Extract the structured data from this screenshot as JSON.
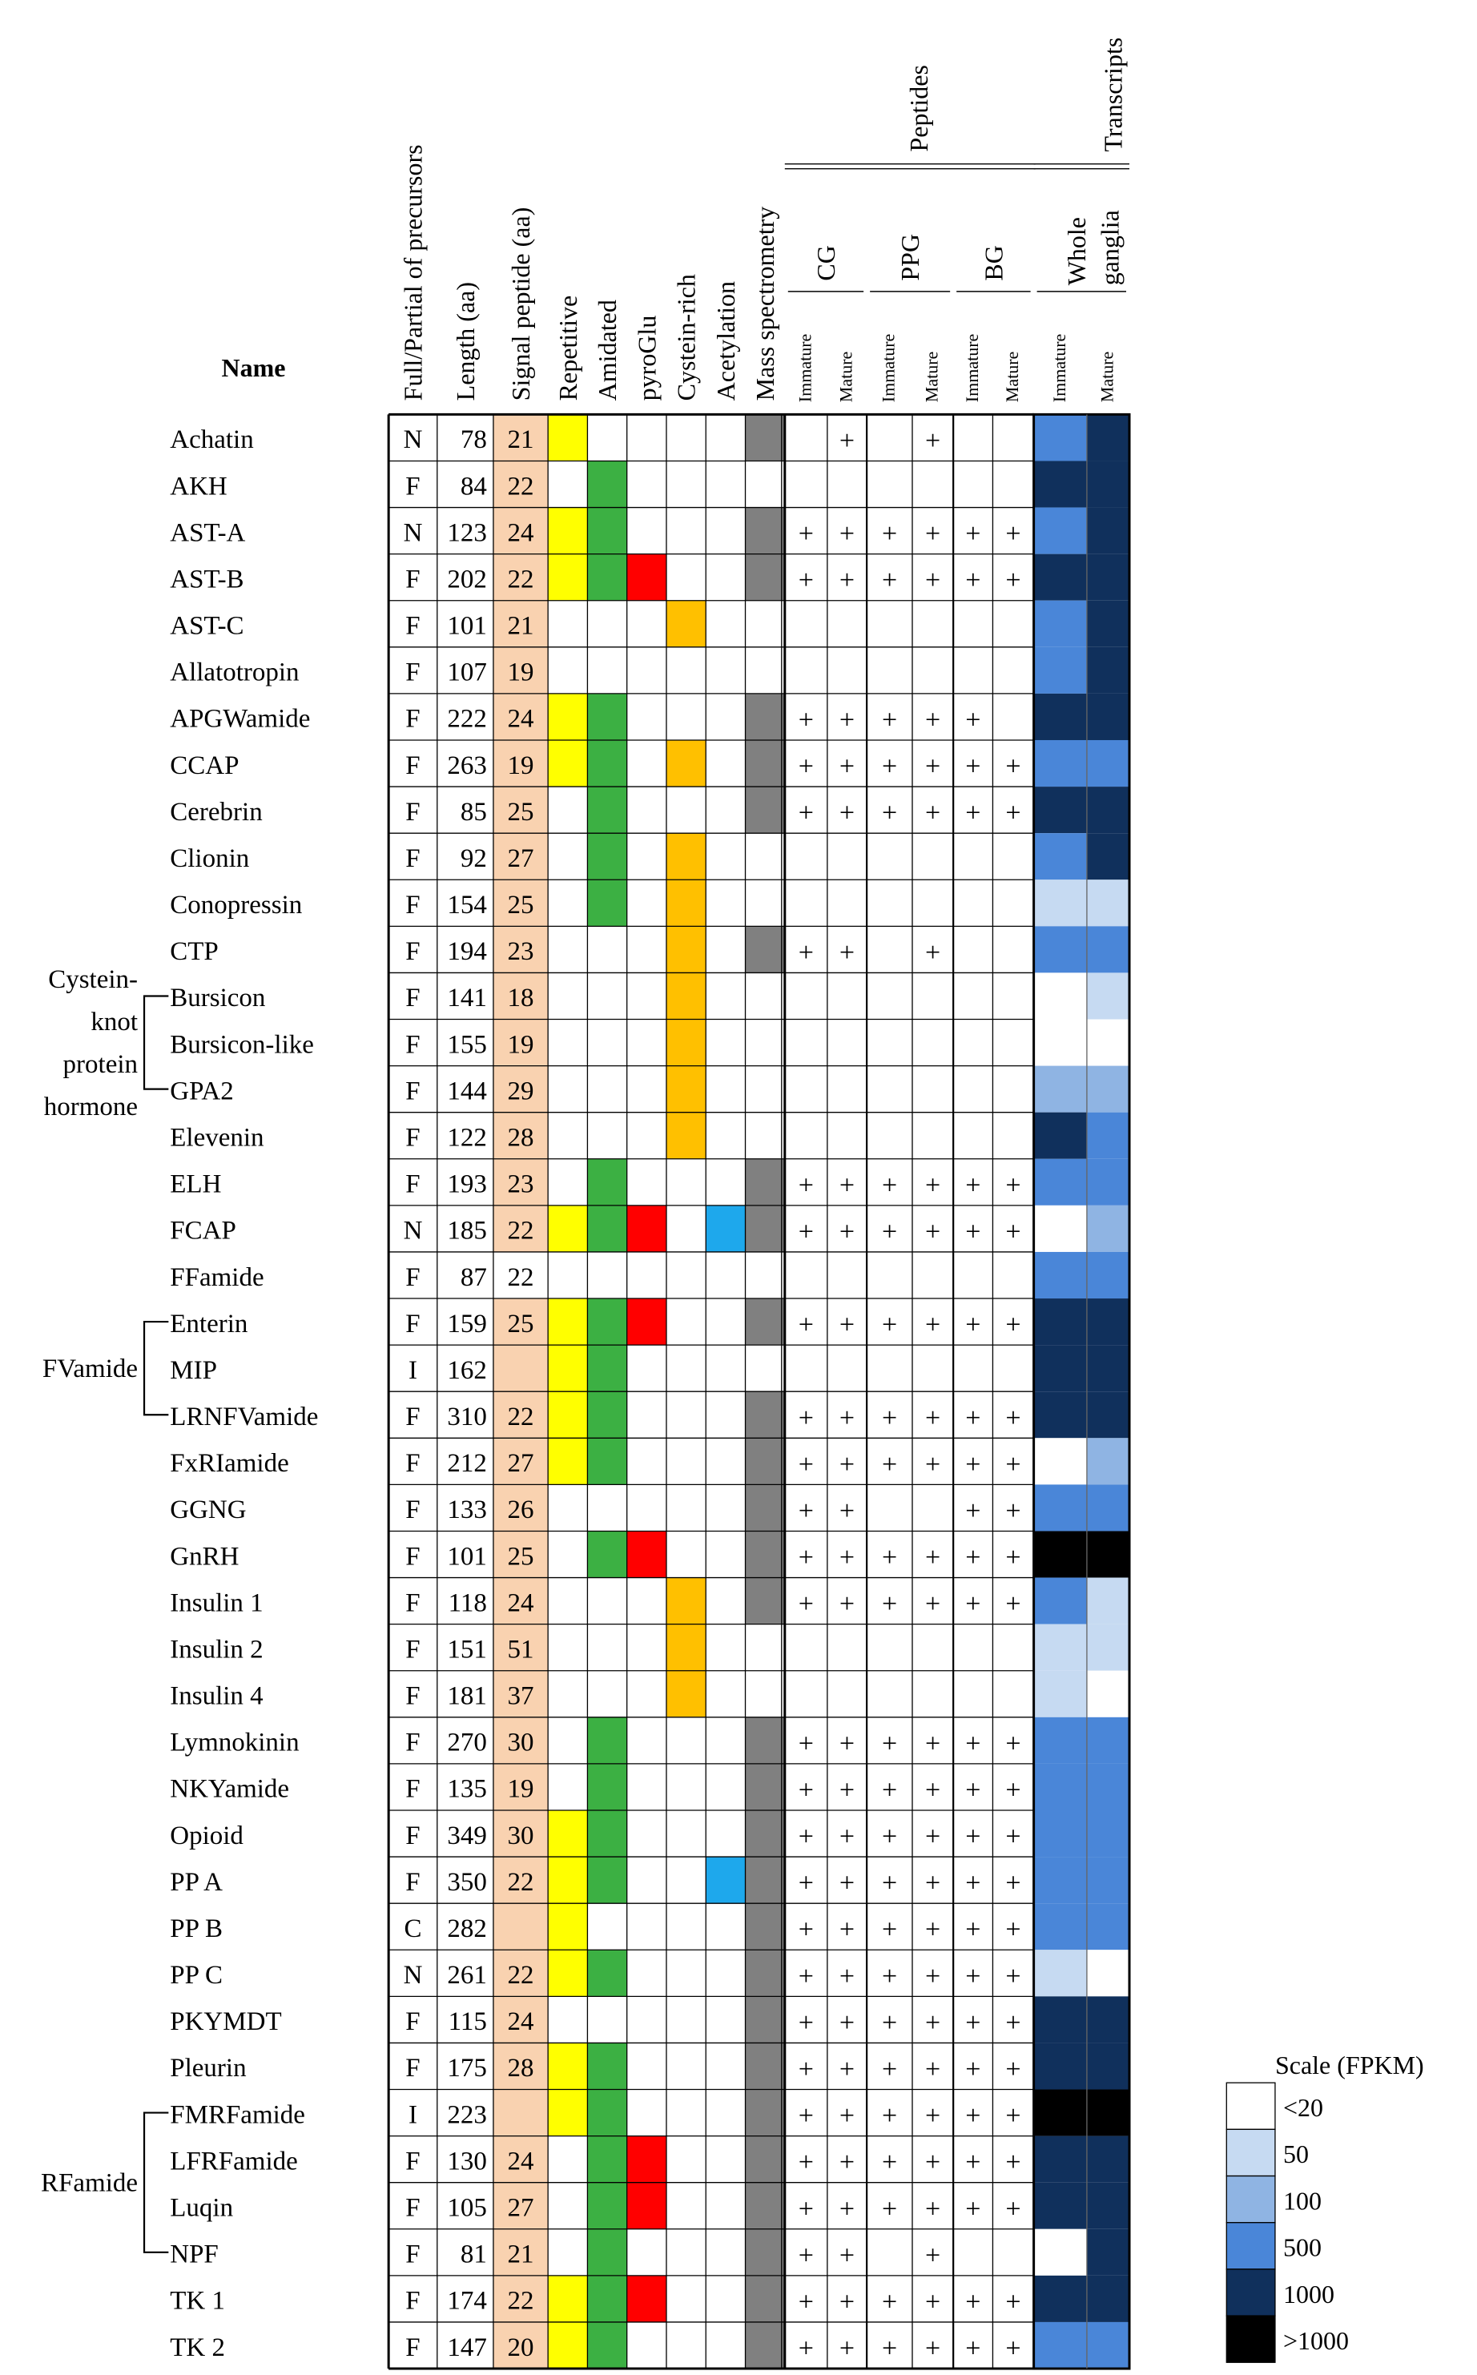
{
  "chart_data": {
    "type": "table",
    "headers": {
      "name": "Name",
      "full_partial": "Full/Partial of precursors",
      "length": "Length (aa)",
      "signal": "Signal peptide (aa)",
      "repetitive": "Repetitive",
      "amidated": "Amidated",
      "pyroglu": "pyroGlu",
      "cysteine": "Cystein-rich",
      "acetylation": "Acetylation",
      "mass_spec": "Mass spectrometry",
      "peptides": "Peptides",
      "transcripts": "Transcripts",
      "cg": "CG",
      "ppg": "PPG",
      "bg": "BG",
      "whole_line1": "Whole",
      "whole_line2": "ganglia",
      "immature": "Immature",
      "mature": "Mature"
    },
    "groups": [
      {
        "label_lines": [
          "Cystein-",
          "knot",
          "protein",
          "hormone"
        ],
        "members": [
          "Bursicon",
          "Bursicon-like",
          "GPA2"
        ]
      },
      {
        "label_lines": [
          "FVamide"
        ],
        "members": [
          "Enterin",
          "MIP",
          "LRNFVamide"
        ]
      },
      {
        "label_lines": [
          "RFamide"
        ],
        "members": [
          "FMRFamide",
          "LFRFamide",
          "Luqin",
          "NPF"
        ]
      }
    ],
    "colors": {
      "signal": "#f9d2b0",
      "repetitive": "#ffff00",
      "amidated": "#3cb043",
      "pyroglu": "#ff0000",
      "cysteine": "#ffc000",
      "acetylation": "#1ea8ec",
      "mass_spec": "#808080"
    },
    "scale": {
      "title": "Scale (FPKM)",
      "levels": [
        {
          "label": "<20",
          "color": "#ffffff"
        },
        {
          "label": "50",
          "color": "#c6daf2"
        },
        {
          "label": "100",
          "color": "#8fb4e3"
        },
        {
          "label": "500",
          "color": "#4a86d8"
        },
        {
          "label": "1000",
          "color": "#10305c"
        },
        {
          "label": ">1000",
          "color": "#000000"
        }
      ]
    },
    "rows": [
      {
        "name": "Achatin",
        "fp": "N",
        "len": 78,
        "sig": 21,
        "rep": 1,
        "ami": 0,
        "pyro": 0,
        "cys": 0,
        "ace": 0,
        "ms": 1,
        "cg": [
          0,
          1
        ],
        "ppg": [
          0,
          1
        ],
        "bg": [
          0,
          0
        ],
        "tr": [
          3,
          4
        ]
      },
      {
        "name": "AKH",
        "fp": "F",
        "len": 84,
        "sig": 22,
        "rep": 0,
        "ami": 1,
        "pyro": 0,
        "cys": 0,
        "ace": 0,
        "ms": 0,
        "cg": [
          0,
          0
        ],
        "ppg": [
          0,
          0
        ],
        "bg": [
          0,
          0
        ],
        "tr": [
          4,
          4
        ]
      },
      {
        "name": "AST-A",
        "fp": "N",
        "len": 123,
        "sig": 24,
        "rep": 1,
        "ami": 1,
        "pyro": 0,
        "cys": 0,
        "ace": 0,
        "ms": 1,
        "cg": [
          1,
          1
        ],
        "ppg": [
          1,
          1
        ],
        "bg": [
          1,
          1
        ],
        "tr": [
          3,
          4
        ]
      },
      {
        "name": "AST-B",
        "fp": "F",
        "len": 202,
        "sig": 22,
        "rep": 1,
        "ami": 1,
        "pyro": 1,
        "cys": 0,
        "ace": 0,
        "ms": 1,
        "cg": [
          1,
          1
        ],
        "ppg": [
          1,
          1
        ],
        "bg": [
          1,
          1
        ],
        "tr": [
          4,
          4
        ]
      },
      {
        "name": "AST-C",
        "fp": "F",
        "len": 101,
        "sig": 21,
        "rep": 0,
        "ami": 0,
        "pyro": 0,
        "cys": 1,
        "ace": 0,
        "ms": 0,
        "cg": [
          0,
          0
        ],
        "ppg": [
          0,
          0
        ],
        "bg": [
          0,
          0
        ],
        "tr": [
          3,
          4
        ]
      },
      {
        "name": "Allatotropin",
        "fp": "F",
        "len": 107,
        "sig": 19,
        "rep": 0,
        "ami": 0,
        "pyro": 0,
        "cys": 0,
        "ace": 0,
        "ms": 0,
        "cg": [
          0,
          0
        ],
        "ppg": [
          0,
          0
        ],
        "bg": [
          0,
          0
        ],
        "tr": [
          3,
          4
        ]
      },
      {
        "name": "APGWamide",
        "fp": "F",
        "len": 222,
        "sig": 24,
        "rep": 1,
        "ami": 1,
        "pyro": 0,
        "cys": 0,
        "ace": 0,
        "ms": 1,
        "cg": [
          1,
          1
        ],
        "ppg": [
          1,
          1
        ],
        "bg": [
          1,
          0
        ],
        "tr": [
          4,
          4
        ]
      },
      {
        "name": "CCAP",
        "fp": "F",
        "len": 263,
        "sig": 19,
        "rep": 1,
        "ami": 1,
        "pyro": 0,
        "cys": 1,
        "ace": 0,
        "ms": 1,
        "cg": [
          1,
          1
        ],
        "ppg": [
          1,
          1
        ],
        "bg": [
          1,
          1
        ],
        "tr": [
          3,
          3
        ]
      },
      {
        "name": "Cerebrin",
        "fp": "F",
        "len": 85,
        "sig": 25,
        "rep": 0,
        "ami": 1,
        "pyro": 0,
        "cys": 0,
        "ace": 0,
        "ms": 1,
        "cg": [
          1,
          1
        ],
        "ppg": [
          1,
          1
        ],
        "bg": [
          1,
          1
        ],
        "tr": [
          4,
          4
        ]
      },
      {
        "name": "Clionin",
        "fp": "F",
        "len": 92,
        "sig": 27,
        "rep": 0,
        "ami": 1,
        "pyro": 0,
        "cys": 1,
        "ace": 0,
        "ms": 0,
        "cg": [
          0,
          0
        ],
        "ppg": [
          0,
          0
        ],
        "bg": [
          0,
          0
        ],
        "tr": [
          3,
          4
        ]
      },
      {
        "name": "Conopressin",
        "fp": "F",
        "len": 154,
        "sig": 25,
        "rep": 0,
        "ami": 1,
        "pyro": 0,
        "cys": 1,
        "ace": 0,
        "ms": 0,
        "cg": [
          0,
          0
        ],
        "ppg": [
          0,
          0
        ],
        "bg": [
          0,
          0
        ],
        "tr": [
          1,
          1
        ]
      },
      {
        "name": "CTP",
        "fp": "F",
        "len": 194,
        "sig": 23,
        "rep": 0,
        "ami": 0,
        "pyro": 0,
        "cys": 1,
        "ace": 0,
        "ms": 1,
        "cg": [
          1,
          1
        ],
        "ppg": [
          0,
          1
        ],
        "bg": [
          0,
          0
        ],
        "tr": [
          3,
          3
        ]
      },
      {
        "name": "Bursicon",
        "fp": "F",
        "len": 141,
        "sig": 18,
        "rep": 0,
        "ami": 0,
        "pyro": 0,
        "cys": 1,
        "ace": 0,
        "ms": 0,
        "cg": [
          0,
          0
        ],
        "ppg": [
          0,
          0
        ],
        "bg": [
          0,
          0
        ],
        "tr": [
          0,
          1
        ]
      },
      {
        "name": "Bursicon-like",
        "fp": "F",
        "len": 155,
        "sig": 19,
        "rep": 0,
        "ami": 0,
        "pyro": 0,
        "cys": 1,
        "ace": 0,
        "ms": 0,
        "cg": [
          0,
          0
        ],
        "ppg": [
          0,
          0
        ],
        "bg": [
          0,
          0
        ],
        "tr": [
          0,
          0
        ]
      },
      {
        "name": "GPA2",
        "fp": "F",
        "len": 144,
        "sig": 29,
        "rep": 0,
        "ami": 0,
        "pyro": 0,
        "cys": 1,
        "ace": 0,
        "ms": 0,
        "cg": [
          0,
          0
        ],
        "ppg": [
          0,
          0
        ],
        "bg": [
          0,
          0
        ],
        "tr": [
          2,
          2
        ]
      },
      {
        "name": "Elevenin",
        "fp": "F",
        "len": 122,
        "sig": 28,
        "rep": 0,
        "ami": 0,
        "pyro": 0,
        "cys": 1,
        "ace": 0,
        "ms": 0,
        "cg": [
          0,
          0
        ],
        "ppg": [
          0,
          0
        ],
        "bg": [
          0,
          0
        ],
        "tr": [
          4,
          3
        ]
      },
      {
        "name": "ELH",
        "fp": "F",
        "len": 193,
        "sig": 23,
        "rep": 0,
        "ami": 1,
        "pyro": 0,
        "cys": 0,
        "ace": 0,
        "ms": 1,
        "cg": [
          1,
          1
        ],
        "ppg": [
          1,
          1
        ],
        "bg": [
          1,
          1
        ],
        "tr": [
          3,
          3
        ]
      },
      {
        "name": "FCAP",
        "fp": "N",
        "len": 185,
        "sig": 22,
        "rep": 1,
        "ami": 1,
        "pyro": 1,
        "cys": 0,
        "ace": 1,
        "ms": 1,
        "cg": [
          1,
          1
        ],
        "ppg": [
          1,
          1
        ],
        "bg": [
          1,
          1
        ],
        "tr": [
          0,
          2
        ]
      },
      {
        "name": "FFamide",
        "fp": "F",
        "len": 87,
        "sig": 22,
        "sigblank": 1,
        "rep": 0,
        "ami": 0,
        "pyro": 0,
        "cys": 0,
        "ace": 0,
        "ms": 0,
        "cg": [
          0,
          0
        ],
        "ppg": [
          0,
          0
        ],
        "bg": [
          0,
          0
        ],
        "tr": [
          3,
          3
        ]
      },
      {
        "name": "Enterin",
        "fp": "F",
        "len": 159,
        "sig": 25,
        "rep": 1,
        "ami": 1,
        "pyro": 1,
        "cys": 0,
        "ace": 0,
        "ms": 1,
        "cg": [
          1,
          1
        ],
        "ppg": [
          1,
          1
        ],
        "bg": [
          1,
          1
        ],
        "tr": [
          4,
          4
        ]
      },
      {
        "name": "MIP",
        "fp": "I",
        "len": 162,
        "sig": null,
        "rep": 1,
        "ami": 1,
        "pyro": 0,
        "cys": 0,
        "ace": 0,
        "ms": 0,
        "cg": [
          0,
          0
        ],
        "ppg": [
          0,
          0
        ],
        "bg": [
          0,
          0
        ],
        "tr": [
          4,
          4
        ]
      },
      {
        "name": "LRNFVamide",
        "fp": "F",
        "len": 310,
        "sig": 22,
        "rep": 1,
        "ami": 1,
        "pyro": 0,
        "cys": 0,
        "ace": 0,
        "ms": 1,
        "cg": [
          1,
          1
        ],
        "ppg": [
          1,
          1
        ],
        "bg": [
          1,
          1
        ],
        "tr": [
          4,
          4
        ]
      },
      {
        "name": "FxRIamide",
        "fp": "F",
        "len": 212,
        "sig": 27,
        "rep": 1,
        "ami": 1,
        "pyro": 0,
        "cys": 0,
        "ace": 0,
        "ms": 1,
        "cg": [
          1,
          1
        ],
        "ppg": [
          1,
          1
        ],
        "bg": [
          1,
          1
        ],
        "tr": [
          0,
          2
        ]
      },
      {
        "name": "GGNG",
        "fp": "F",
        "len": 133,
        "sig": 26,
        "rep": 0,
        "ami": 0,
        "pyro": 0,
        "cys": 0,
        "ace": 0,
        "ms": 1,
        "cg": [
          1,
          1
        ],
        "ppg": [
          0,
          0
        ],
        "bg": [
          1,
          1
        ],
        "tr": [
          3,
          3
        ]
      },
      {
        "name": "GnRH",
        "fp": "F",
        "len": 101,
        "sig": 25,
        "rep": 0,
        "ami": 1,
        "pyro": 1,
        "cys": 0,
        "ace": 0,
        "ms": 1,
        "cg": [
          1,
          1
        ],
        "ppg": [
          1,
          1
        ],
        "bg": [
          1,
          1
        ],
        "tr": [
          5,
          5
        ]
      },
      {
        "name": "Insulin 1",
        "fp": "F",
        "len": 118,
        "sig": 24,
        "rep": 0,
        "ami": 0,
        "pyro": 0,
        "cys": 1,
        "ace": 0,
        "ms": 1,
        "cg": [
          1,
          1
        ],
        "ppg": [
          1,
          1
        ],
        "bg": [
          1,
          1
        ],
        "tr": [
          3,
          1
        ]
      },
      {
        "name": "Insulin 2",
        "fp": "F",
        "len": 151,
        "sig": 51,
        "rep": 0,
        "ami": 0,
        "pyro": 0,
        "cys": 1,
        "ace": 0,
        "ms": 0,
        "cg": [
          0,
          0
        ],
        "ppg": [
          0,
          0
        ],
        "bg": [
          0,
          0
        ],
        "tr": [
          1,
          1
        ]
      },
      {
        "name": "Insulin 4",
        "fp": "F",
        "len": 181,
        "sig": 37,
        "rep": 0,
        "ami": 0,
        "pyro": 0,
        "cys": 1,
        "ace": 0,
        "ms": 0,
        "cg": [
          0,
          0
        ],
        "ppg": [
          0,
          0
        ],
        "bg": [
          0,
          0
        ],
        "tr": [
          1,
          0
        ]
      },
      {
        "name": "Lymnokinin",
        "fp": "F",
        "len": 270,
        "sig": 30,
        "rep": 0,
        "ami": 1,
        "pyro": 0,
        "cys": 0,
        "ace": 0,
        "ms": 1,
        "cg": [
          1,
          1
        ],
        "ppg": [
          1,
          1
        ],
        "bg": [
          1,
          1
        ],
        "tr": [
          3,
          3
        ]
      },
      {
        "name": "NKYamide",
        "fp": "F",
        "len": 135,
        "sig": 19,
        "rep": 0,
        "ami": 1,
        "pyro": 0,
        "cys": 0,
        "ace": 0,
        "ms": 1,
        "cg": [
          1,
          1
        ],
        "ppg": [
          1,
          1
        ],
        "bg": [
          1,
          1
        ],
        "tr": [
          3,
          3
        ]
      },
      {
        "name": "Opioid",
        "fp": "F",
        "len": 349,
        "sig": 30,
        "rep": 1,
        "ami": 1,
        "pyro": 0,
        "cys": 0,
        "ace": 0,
        "ms": 1,
        "cg": [
          1,
          1
        ],
        "ppg": [
          1,
          1
        ],
        "bg": [
          1,
          1
        ],
        "tr": [
          3,
          3
        ]
      },
      {
        "name": "PP A",
        "fp": "F",
        "len": 350,
        "sig": 22,
        "rep": 1,
        "ami": 1,
        "pyro": 0,
        "cys": 0,
        "ace": 1,
        "ms": 1,
        "cg": [
          1,
          1
        ],
        "ppg": [
          1,
          1
        ],
        "bg": [
          1,
          1
        ],
        "tr": [
          3,
          3
        ]
      },
      {
        "name": "PP B",
        "fp": "C",
        "len": 282,
        "sig": null,
        "rep": 1,
        "ami": 0,
        "pyro": 0,
        "cys": 0,
        "ace": 0,
        "ms": 1,
        "cg": [
          1,
          1
        ],
        "ppg": [
          1,
          1
        ],
        "bg": [
          1,
          1
        ],
        "tr": [
          3,
          3
        ]
      },
      {
        "name": "PP C",
        "fp": "N",
        "len": 261,
        "sig": 22,
        "rep": 1,
        "ami": 1,
        "pyro": 0,
        "cys": 0,
        "ace": 0,
        "ms": 1,
        "cg": [
          1,
          1
        ],
        "ppg": [
          1,
          1
        ],
        "bg": [
          1,
          1
        ],
        "tr": [
          1,
          0
        ]
      },
      {
        "name": "PKYMDT",
        "fp": "F",
        "len": 115,
        "sig": 24,
        "rep": 0,
        "ami": 0,
        "pyro": 0,
        "cys": 0,
        "ace": 0,
        "ms": 1,
        "cg": [
          1,
          1
        ],
        "ppg": [
          1,
          1
        ],
        "bg": [
          1,
          1
        ],
        "tr": [
          4,
          4
        ]
      },
      {
        "name": "Pleurin",
        "fp": "F",
        "len": 175,
        "sig": 28,
        "rep": 1,
        "ami": 1,
        "pyro": 0,
        "cys": 0,
        "ace": 0,
        "ms": 1,
        "cg": [
          1,
          1
        ],
        "ppg": [
          1,
          1
        ],
        "bg": [
          1,
          1
        ],
        "tr": [
          4,
          4
        ]
      },
      {
        "name": "FMRFamide",
        "fp": "I",
        "len": 223,
        "sig": null,
        "rep": 1,
        "ami": 1,
        "pyro": 0,
        "cys": 0,
        "ace": 0,
        "ms": 1,
        "cg": [
          1,
          1
        ],
        "ppg": [
          1,
          1
        ],
        "bg": [
          1,
          1
        ],
        "tr": [
          5,
          5
        ]
      },
      {
        "name": "LFRFamide",
        "fp": "F",
        "len": 130,
        "sig": 24,
        "rep": 0,
        "ami": 1,
        "pyro": 1,
        "cys": 0,
        "ace": 0,
        "ms": 1,
        "cg": [
          1,
          1
        ],
        "ppg": [
          1,
          1
        ],
        "bg": [
          1,
          1
        ],
        "tr": [
          4,
          4
        ]
      },
      {
        "name": "Luqin",
        "fp": "F",
        "len": 105,
        "sig": 27,
        "rep": 0,
        "ami": 1,
        "pyro": 1,
        "cys": 0,
        "ace": 0,
        "ms": 1,
        "cg": [
          1,
          1
        ],
        "ppg": [
          1,
          1
        ],
        "bg": [
          1,
          1
        ],
        "tr": [
          4,
          4
        ]
      },
      {
        "name": "NPF",
        "fp": "F",
        "len": 81,
        "sig": 21,
        "rep": 0,
        "ami": 1,
        "pyro": 0,
        "cys": 0,
        "ace": 0,
        "ms": 1,
        "cg": [
          1,
          1
        ],
        "ppg": [
          0,
          1
        ],
        "bg": [
          0,
          0
        ],
        "tr": [
          0,
          4
        ]
      },
      {
        "name": "TK 1",
        "fp": "F",
        "len": 174,
        "sig": 22,
        "rep": 1,
        "ami": 1,
        "pyro": 1,
        "cys": 0,
        "ace": 0,
        "ms": 1,
        "cg": [
          1,
          1
        ],
        "ppg": [
          1,
          1
        ],
        "bg": [
          1,
          1
        ],
        "tr": [
          4,
          4
        ]
      },
      {
        "name": "TK 2",
        "fp": "F",
        "len": 147,
        "sig": 20,
        "rep": 1,
        "ami": 1,
        "pyro": 0,
        "cys": 0,
        "ace": 0,
        "ms": 1,
        "cg": [
          1,
          1
        ],
        "ppg": [
          1,
          1
        ],
        "bg": [
          1,
          1
        ],
        "tr": [
          3,
          3
        ]
      }
    ]
  }
}
